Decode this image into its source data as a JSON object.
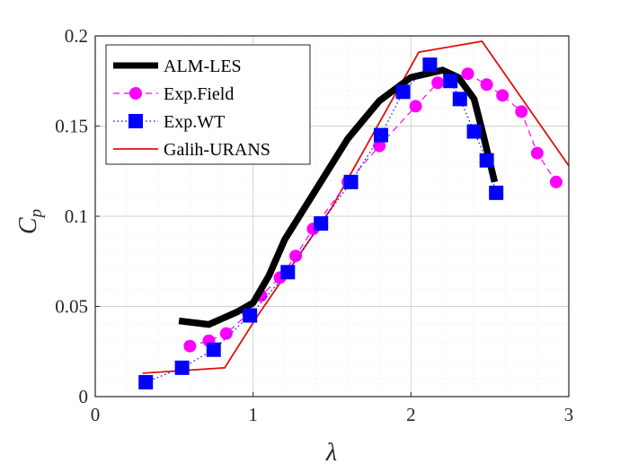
{
  "chart_data": {
    "type": "line",
    "title": "",
    "xlabel": "λ",
    "ylabel_main": "C",
    "ylabel_sub": "p",
    "xlim": [
      0,
      3
    ],
    "ylim": [
      0,
      0.2
    ],
    "xticks": [
      0,
      1,
      2,
      3
    ],
    "xtick_labels": [
      "0",
      "1",
      "2",
      "3"
    ],
    "yticks": [
      0,
      0.05,
      0.1,
      0.15,
      0.2
    ],
    "ytick_labels": [
      "0",
      "0.05",
      "0.1",
      "0.15",
      "0.2"
    ],
    "grid": true,
    "minor_grid": true,
    "legend_position": "top-left",
    "series": [
      {
        "name": "ALM-LES",
        "color": "#000000",
        "line": "solid-thick",
        "marker": "none",
        "x": [
          0.53,
          0.72,
          0.9,
          1.0,
          1.1,
          1.2,
          1.4,
          1.6,
          1.8,
          2.0,
          2.2,
          2.3,
          2.4,
          2.45,
          2.5,
          2.53
        ],
        "y": [
          0.042,
          0.04,
          0.047,
          0.052,
          0.067,
          0.087,
          0.115,
          0.143,
          0.164,
          0.177,
          0.181,
          0.177,
          0.165,
          0.148,
          0.13,
          0.119
        ]
      },
      {
        "name": "Exp.Field",
        "color": "#ff00ff",
        "line": "dashed",
        "marker": "circle",
        "x": [
          0.6,
          0.72,
          0.83,
          0.97,
          1.05,
          1.17,
          1.27,
          1.38,
          1.6,
          1.8,
          2.03,
          2.17,
          2.36,
          2.48,
          2.58,
          2.7,
          2.8,
          2.92
        ],
        "y": [
          0.028,
          0.031,
          0.035,
          0.046,
          0.056,
          0.066,
          0.078,
          0.093,
          0.119,
          0.139,
          0.161,
          0.174,
          0.179,
          0.173,
          0.167,
          0.158,
          0.135,
          0.119
        ]
      },
      {
        "name": "Exp.WT",
        "color": "#0000ff",
        "line": "dotted",
        "marker": "square",
        "x": [
          0.32,
          0.55,
          0.75,
          0.98,
          1.22,
          1.43,
          1.62,
          1.81,
          1.95,
          2.12,
          2.25,
          2.31,
          2.4,
          2.48,
          2.54
        ],
        "y": [
          0.008,
          0.016,
          0.026,
          0.045,
          0.069,
          0.096,
          0.119,
          0.145,
          0.169,
          0.184,
          0.175,
          0.165,
          0.147,
          0.131,
          0.113
        ]
      },
      {
        "name": "Galih-URANS",
        "color": "#e01010",
        "line": "solid",
        "marker": "none",
        "x": [
          0.3,
          0.82,
          1.03,
          1.5,
          2.05,
          2.45,
          3.0
        ],
        "y": [
          0.013,
          0.016,
          0.045,
          0.105,
          0.191,
          0.197,
          0.128
        ]
      }
    ]
  }
}
